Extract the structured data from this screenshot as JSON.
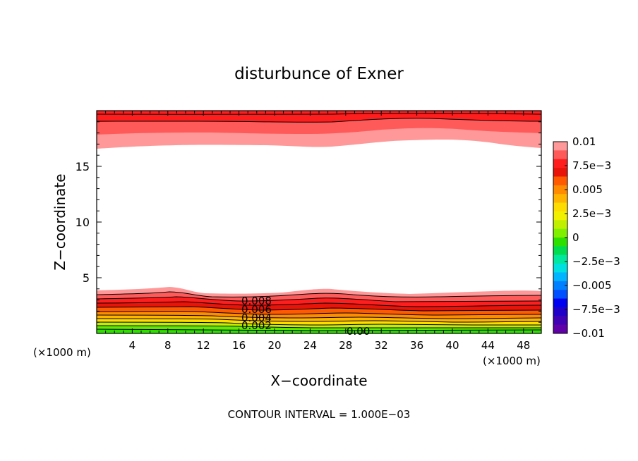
{
  "chart_data": {
    "type": "contour",
    "title": "disturbunce of Exner",
    "xlabel": "X−coordinate",
    "ylabel": "Z−coordinate",
    "x_unit": "(×1000 m)",
    "x_unit_right": "(×1000 m)",
    "footer": "CONTOUR INTERVAL = 1.000E−03",
    "xlim": [
      0,
      50
    ],
    "ylim": [
      0,
      20
    ],
    "x_ticks": [
      4,
      8,
      12,
      16,
      20,
      24,
      28,
      32,
      36,
      40,
      44,
      48
    ],
    "x_tick_labels": [
      "4",
      "8",
      "12",
      "16",
      "20",
      "24",
      "28",
      "32",
      "36",
      "40",
      "44",
      "48"
    ],
    "y_ticks": [
      5,
      10,
      15
    ],
    "y_tick_labels": [
      "5",
      "10",
      "15"
    ],
    "contour_interval": 0.001,
    "contour_labels": [
      "0.008",
      "0.006",
      "0.004",
      "0.002",
      "0.00"
    ],
    "colorbar": {
      "vmin": -0.01,
      "vmax": 0.01,
      "tick_labels": [
        "0.01",
        "7.5e−3",
        "0.005",
        "2.5e−3",
        "0",
        "−2.5e−3",
        "−0.005",
        "−7.5e−3",
        "−0.01"
      ],
      "colors_top_to_bottom": [
        "#ff9898",
        "#ff5a5a",
        "#ff1e1e",
        "#e8140a",
        "#ff5a00",
        "#ff8c00",
        "#ffb400",
        "#ffdc00",
        "#f0f000",
        "#c0f000",
        "#80f000",
        "#2ee000",
        "#00dc50",
        "#00e8a0",
        "#00e0e0",
        "#00b4ff",
        "#0080ff",
        "#0050ff",
        "#0000f0",
        "#2000c8",
        "#4000b4",
        "#6000a8"
      ]
    },
    "field_description": "Positive disturbance near top and bottom boundaries; near-zero interior.",
    "top_layer_edge_z": [
      16.5,
      16.6,
      16.7,
      16.8,
      16.7,
      16.6,
      16.8,
      17.1,
      17.3,
      17.2,
      16.9,
      16.7
    ],
    "top_layer_edge_x": [
      0,
      4,
      8,
      12,
      16,
      20,
      24,
      28,
      32,
      36,
      40,
      50
    ],
    "bottom_layer_edge_z": [
      3.8,
      3.9,
      4.1,
      3.8,
      3.7,
      3.8,
      4.0,
      3.8,
      3.7,
      3.8,
      3.8,
      3.9
    ],
    "bottom_layer_edge_x": [
      0,
      4,
      8,
      12,
      16,
      20,
      24,
      28,
      32,
      36,
      40,
      50
    ]
  }
}
